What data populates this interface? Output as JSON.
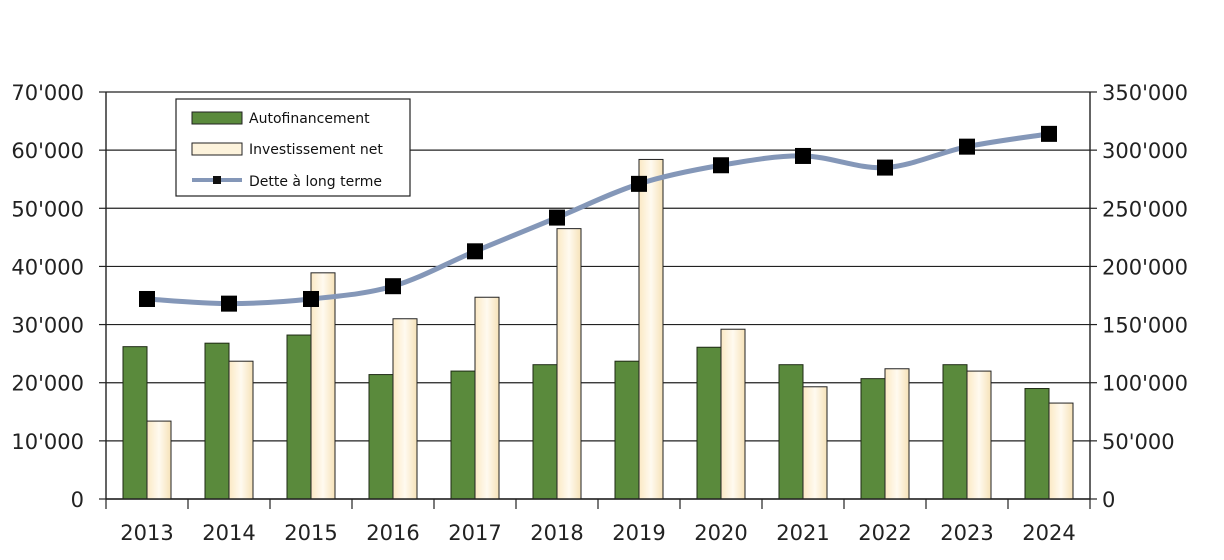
{
  "chart_data": {
    "type": "bar",
    "title": "",
    "xlabel": "",
    "ylabel": "",
    "categories": [
      "2013",
      "2014",
      "2015",
      "2016",
      "2017",
      "2018",
      "2019",
      "2020",
      "2021",
      "2022",
      "2023",
      "2024"
    ],
    "ylim": [
      0,
      70000
    ],
    "y2lim": [
      0,
      350000
    ],
    "yticks": [
      "0",
      "10'000",
      "20'000",
      "30'000",
      "40'000",
      "50'000",
      "60'000",
      "70'000"
    ],
    "y2ticks": [
      "0",
      "50'000",
      "100'000",
      "150'000",
      "200'000",
      "250'000",
      "300'000",
      "350'000"
    ],
    "grid": true,
    "legend_position": "top-left",
    "series": [
      {
        "name": "Autofinancement",
        "type": "bar",
        "axis": "left",
        "color": "#5a8a3c",
        "values": [
          26200,
          26800,
          28200,
          21400,
          22000,
          23100,
          23700,
          26100,
          23100,
          20700,
          23100,
          19000
        ]
      },
      {
        "name": "Investissement net",
        "type": "bar",
        "axis": "left",
        "color": "#fdf3dc",
        "values": [
          13400,
          23700,
          38900,
          31000,
          34700,
          46500,
          58400,
          29200,
          19300,
          22400,
          22000,
          16500
        ]
      },
      {
        "name": "Dette à long terme",
        "type": "line",
        "axis": "right",
        "color": "#8497b8",
        "values": [
          172000,
          168000,
          172000,
          183000,
          213000,
          242000,
          271000,
          287000,
          295000,
          285000,
          303000,
          314000
        ]
      }
    ]
  }
}
